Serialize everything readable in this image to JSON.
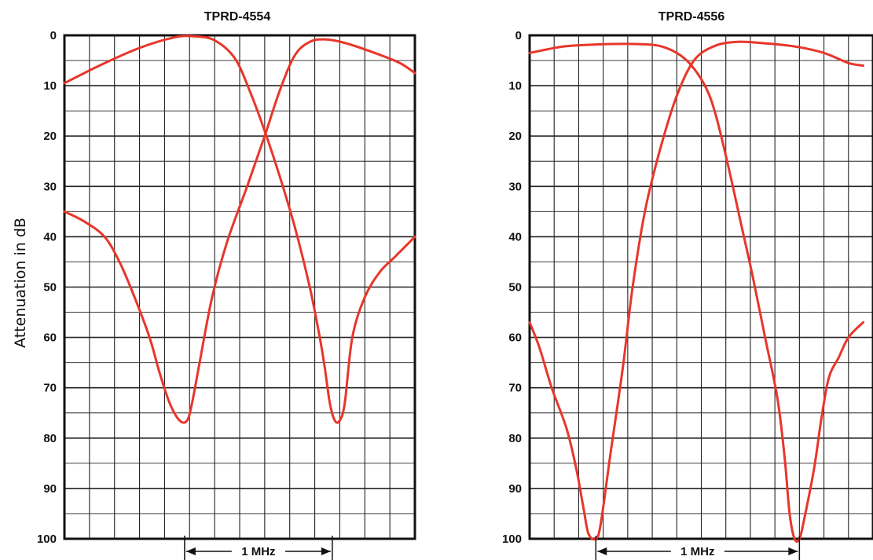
{
  "y_axis_label": "Attenuation in dB",
  "colors": {
    "curve": "#e8362a",
    "grid": "#222222",
    "frame": "#111111"
  },
  "chart_data": [
    {
      "type": "line",
      "title": "TPRD-4554",
      "ylabel": "Attenuation in dB",
      "ylim": [
        0,
        100
      ],
      "y_inverted": true,
      "yticks": [
        "0",
        "10",
        "20",
        "30",
        "40",
        "50",
        "60",
        "70",
        "80",
        "90",
        "100"
      ],
      "xlim": [
        0,
        7
      ],
      "grid": true,
      "annotation": "1 MHz",
      "annotation_span": [
        2.4,
        5.35
      ],
      "series": [
        {
          "values_xy": [
            [
              0,
              9.5
            ],
            [
              0.7,
              6
            ],
            [
              1.5,
              2.5
            ],
            [
              2.2,
              0.4
            ],
            [
              2.6,
              0.2
            ],
            [
              3.0,
              1.0
            ],
            [
              3.4,
              4.5
            ],
            [
              3.7,
              11
            ],
            [
              4.0,
              19
            ],
            [
              4.3,
              28
            ],
            [
              4.6,
              38
            ],
            [
              4.9,
              50
            ],
            [
              5.1,
              60
            ],
            [
              5.2,
              66
            ],
            [
              5.3,
              73
            ],
            [
              5.4,
              76.5
            ],
            [
              5.5,
              76.5
            ],
            [
              5.6,
              73
            ],
            [
              5.75,
              60
            ],
            [
              6.0,
              52
            ],
            [
              6.3,
              47
            ],
            [
              6.6,
              44
            ],
            [
              7.0,
              40
            ]
          ]
        },
        {
          "values_xy": [
            [
              0,
              35
            ],
            [
              0.4,
              37
            ],
            [
              0.8,
              40
            ],
            [
              1.1,
              45
            ],
            [
              1.4,
              52
            ],
            [
              1.7,
              60
            ],
            [
              1.9,
              67
            ],
            [
              2.1,
              73
            ],
            [
              2.3,
              76.5
            ],
            [
              2.45,
              76.5
            ],
            [
              2.55,
              73
            ],
            [
              2.7,
              65
            ],
            [
              2.95,
              52
            ],
            [
              3.25,
              41
            ],
            [
              3.65,
              30
            ],
            [
              4.0,
              20
            ],
            [
              4.3,
              11
            ],
            [
              4.6,
              4
            ],
            [
              4.9,
              1.3
            ],
            [
              5.2,
              0.8
            ],
            [
              5.6,
              1.5
            ],
            [
              6.2,
              3.5
            ],
            [
              6.7,
              5.5
            ],
            [
              7.0,
              7.5
            ]
          ]
        }
      ]
    },
    {
      "type": "line",
      "title": "TPRD-4556",
      "ylabel": "",
      "ylim": [
        0,
        100
      ],
      "y_inverted": true,
      "yticks": [
        "0",
        "10",
        "20",
        "30",
        "40",
        "50",
        "60",
        "70",
        "80",
        "90",
        "100"
      ],
      "xlim": [
        0,
        7
      ],
      "grid": true,
      "annotation": "1 MHz",
      "annotation_span": [
        1.35,
        5.5
      ],
      "series": [
        {
          "values_xy": [
            [
              0,
              3.5
            ],
            [
              0.7,
              2.2
            ],
            [
              1.4,
              1.8
            ],
            [
              2.0,
              1.7
            ],
            [
              2.6,
              2.0
            ],
            [
              3.0,
              3.5
            ],
            [
              3.3,
              6.0
            ],
            [
              3.6,
              10.5
            ],
            [
              3.8,
              16
            ],
            [
              4.05,
              26
            ],
            [
              4.3,
              37
            ],
            [
              4.55,
              48
            ],
            [
              4.8,
              60
            ],
            [
              5.05,
              72
            ],
            [
              5.2,
              84
            ],
            [
              5.3,
              95
            ],
            [
              5.4,
              100
            ],
            [
              5.5,
              100
            ],
            [
              5.6,
              96
            ],
            [
              5.8,
              86
            ],
            [
              5.95,
              76
            ],
            [
              6.1,
              68
            ],
            [
              6.3,
              64
            ],
            [
              6.5,
              60
            ],
            [
              6.8,
              57
            ]
          ]
        },
        {
          "values_xy": [
            [
              0,
              57
            ],
            [
              0.2,
              62
            ],
            [
              0.45,
              70
            ],
            [
              0.75,
              78
            ],
            [
              0.95,
              86
            ],
            [
              1.1,
              94
            ],
            [
              1.2,
              99
            ],
            [
              1.35,
              100
            ],
            [
              1.45,
              97
            ],
            [
              1.65,
              83
            ],
            [
              1.9,
              66
            ],
            [
              2.1,
              50
            ],
            [
              2.35,
              35
            ],
            [
              2.65,
              23
            ],
            [
              3.0,
              12
            ],
            [
              3.35,
              5
            ],
            [
              3.75,
              2.2
            ],
            [
              4.2,
              1.3
            ],
            [
              4.7,
              1.5
            ],
            [
              5.4,
              2.2
            ],
            [
              6.0,
              3.5
            ],
            [
              6.5,
              5.5
            ],
            [
              6.8,
              6.0
            ]
          ]
        }
      ]
    }
  ]
}
